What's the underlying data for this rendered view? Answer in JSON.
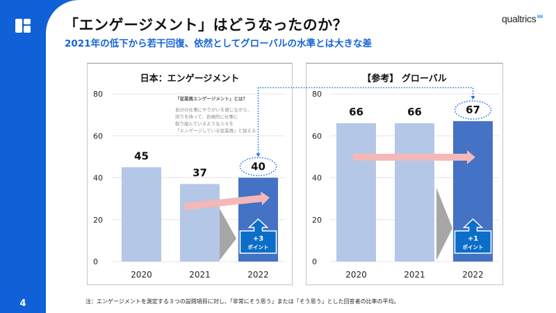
{
  "page": {
    "title": "「エンゲージメント」はどうなったのか？",
    "subtitle": "2021年の低下から若干回復、依然としてグローバルの水準とは大きな差",
    "brand": "qualtrics",
    "brand_mark": "XM",
    "page_number": "4",
    "footnote": "注：エンゲージメントを測定する３つの設問項目に対し、「非常にそう思う」または「そう思う」とした回答者の比率の平均。",
    "logo_icon": "app-logo-icon"
  },
  "colors": {
    "sidebar": "#1060d8",
    "subtitle": "#1565d8",
    "bar_light": "#b4c7e7",
    "bar_highlight": "#4472c4",
    "trend_arrow": "#f4b8b8",
    "gain_badge": "#0b6ec8",
    "dotted_link": "#1a6fe0",
    "step_triangle": "#a6a6a6"
  },
  "definition": {
    "title": "「従業員エンゲージメント」とは？",
    "lines": [
      "自分の仕事にやりがいを感じながら、",
      "誇りを持って、自発的に仕事に",
      "取り組んでいるような人々を",
      "「エンゲージしている従業員」と捉える"
    ]
  },
  "chart_data": [
    {
      "type": "bar",
      "title": "日本：エンゲージメント",
      "categories": [
        "2020",
        "2021",
        "2022"
      ],
      "values": [
        45,
        37,
        40
      ],
      "highlight_index": 2,
      "ylim": [
        0,
        80
      ],
      "yticks": [
        0,
        20,
        40,
        60,
        80
      ],
      "grid": true,
      "xlabel": "",
      "ylabel": "",
      "annotations": {
        "change_value": "+3",
        "change_unit": "ポイント",
        "trend": "up"
      }
    },
    {
      "type": "bar",
      "title": "【参考】 グローバル",
      "categories": [
        "2020",
        "2021",
        "2022"
      ],
      "values": [
        66,
        66,
        67
      ],
      "highlight_index": 2,
      "ylim": [
        0,
        80
      ],
      "yticks": [
        0,
        20,
        40,
        60,
        80
      ],
      "grid": true,
      "xlabel": "",
      "ylabel": "",
      "annotations": {
        "change_value": "+1",
        "change_unit": "ポイント",
        "trend": "flat"
      }
    }
  ]
}
